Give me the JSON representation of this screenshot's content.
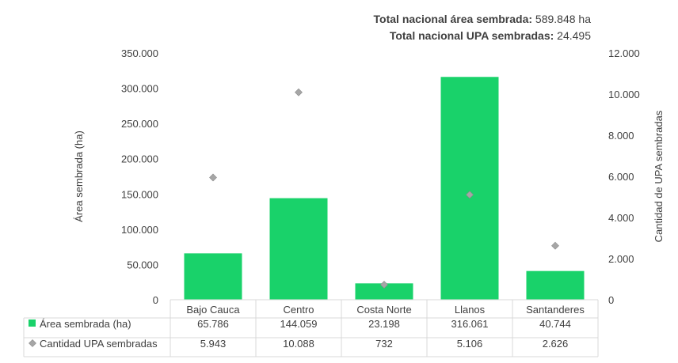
{
  "totals": {
    "area_label": "Total nacional área sembrada:",
    "area_value": "589.848 ha",
    "upa_label": "Total nacional UPA sembradas:",
    "upa_value": "24.495"
  },
  "colors": {
    "bar": "#19D26A",
    "marker": "#A6A6A6",
    "table_border": "#D9D9D9"
  },
  "chart_data": {
    "type": "bar",
    "categories": [
      "Bajo Cauca",
      "Centro",
      "Costa Norte",
      "Llanos",
      "Santanderes"
    ],
    "series": [
      {
        "name": "Área sembrada (ha)",
        "kind": "bar",
        "axis": "left",
        "values": [
          65786,
          144059,
          23198,
          316061,
          40744
        ],
        "labels": [
          "65.786",
          "144.059",
          "23.198",
          "316.061",
          "40.744"
        ]
      },
      {
        "name": "Cantidad UPA sembradas",
        "kind": "marker",
        "axis": "right",
        "values": [
          5943,
          10088,
          732,
          5106,
          2626
        ],
        "labels": [
          "5.943",
          "10.088",
          "732",
          "5.106",
          "2.626"
        ]
      }
    ],
    "ylabel": "Área sembrada (ha)",
    "y2label": "Cantidad de UPA sembradas",
    "ylim": [
      0,
      350000
    ],
    "y2lim": [
      0,
      12000
    ],
    "yticks": [
      "0",
      "50.000",
      "100.000",
      "150.000",
      "200.000",
      "250.000",
      "300.000",
      "350.000"
    ],
    "y2ticks": [
      "0",
      "2.000",
      "4.000",
      "6.000",
      "8.000",
      "10.000",
      "12.000"
    ],
    "grid": false,
    "legend": "data-table"
  }
}
